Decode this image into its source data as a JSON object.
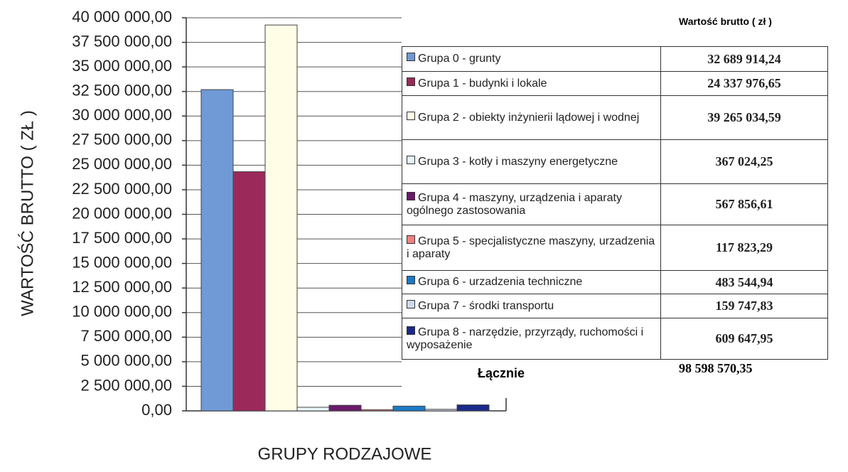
{
  "chart_data": {
    "type": "bar",
    "ylabel": "WARTOŚĆ BRUTTO ( ZŁ )",
    "xlabel": "GRUPY RODZAJOWE",
    "table_header": "Wartość brutto ( zł )",
    "ylim": [
      0,
      40000000
    ],
    "yticks": [
      {
        "value": 0,
        "label": "0,00"
      },
      {
        "value": 2500000,
        "label": "2 500 000,00"
      },
      {
        "value": 5000000,
        "label": "5 000 000,00"
      },
      {
        "value": 7500000,
        "label": "7 500 000,00"
      },
      {
        "value": 10000000,
        "label": "10 000 000,00"
      },
      {
        "value": 12500000,
        "label": "12 500 000,00"
      },
      {
        "value": 15000000,
        "label": "15 000 000,00"
      },
      {
        "value": 17500000,
        "label": "17 500 000,00"
      },
      {
        "value": 20000000,
        "label": "20 000 000,00"
      },
      {
        "value": 22500000,
        "label": "22 500 000,00"
      },
      {
        "value": 25000000,
        "label": "25 000 000,00"
      },
      {
        "value": 27500000,
        "label": "27 500 000,00"
      },
      {
        "value": 30000000,
        "label": "30 000 000,00"
      },
      {
        "value": 32500000,
        "label": "32 500 000,00"
      },
      {
        "value": 35000000,
        "label": "35 000 000,00"
      },
      {
        "value": 37500000,
        "label": "37 500 000,00"
      },
      {
        "value": 40000000,
        "label": "40 000 000,00"
      }
    ],
    "grid": true,
    "series": [
      {
        "name": "Grupa 0 - grunty",
        "color": "#6f9ad6",
        "values": [
          32689914.24
        ],
        "value_labels": [
          "32 689 914,24"
        ]
      },
      {
        "name": "Grupa 1 - budynki i lokale",
        "color": "#9b2a5a",
        "values": [
          24337976.65
        ],
        "value_labels": [
          "24 337 976,65"
        ]
      },
      {
        "name": "Grupa 2 - obiekty inżynierii lądowej i wodnej",
        "color": "#fffde6",
        "values": [
          39265034.59
        ],
        "value_labels": [
          "39 265 034,59"
        ]
      },
      {
        "name": "Grupa 3 - kotły i maszyny energetyczne",
        "color": "#e6f4f8",
        "values": [
          367024.25
        ],
        "value_labels": [
          "367 024,25"
        ]
      },
      {
        "name": "Grupa 4 - maszyny, urządzenia i aparaty ogólnego zastosowania",
        "color": "#6a1a6a",
        "values": [
          567856.61
        ],
        "value_labels": [
          "567 856,61"
        ]
      },
      {
        "name": "Grupa 5 - specjalistyczne maszyny, urzadzenia i aparaty",
        "color": "#f08080",
        "values": [
          117823.29
        ],
        "value_labels": [
          "117 823,29"
        ]
      },
      {
        "name": "Grupa 6 - urzadzenia techniczne",
        "color": "#1a7ac8",
        "values": [
          483544.94
        ],
        "value_labels": [
          "483 544,94"
        ]
      },
      {
        "name": "Grupa 7 - środki transportu",
        "color": "#d0d8f0",
        "values": [
          159747.83
        ],
        "value_labels": [
          "159 747,83"
        ]
      },
      {
        "name": "Grupa 8 - narzędzie, przyrządy, ruchomości i wyposażenie",
        "color": "#1a2a8a",
        "values": [
          609647.95
        ],
        "value_labels": [
          "609 647,95"
        ]
      }
    ],
    "total": {
      "name": "Łącznie",
      "values": [
        98598570.35
      ],
      "value_labels": [
        "98 598 570,35"
      ]
    }
  }
}
